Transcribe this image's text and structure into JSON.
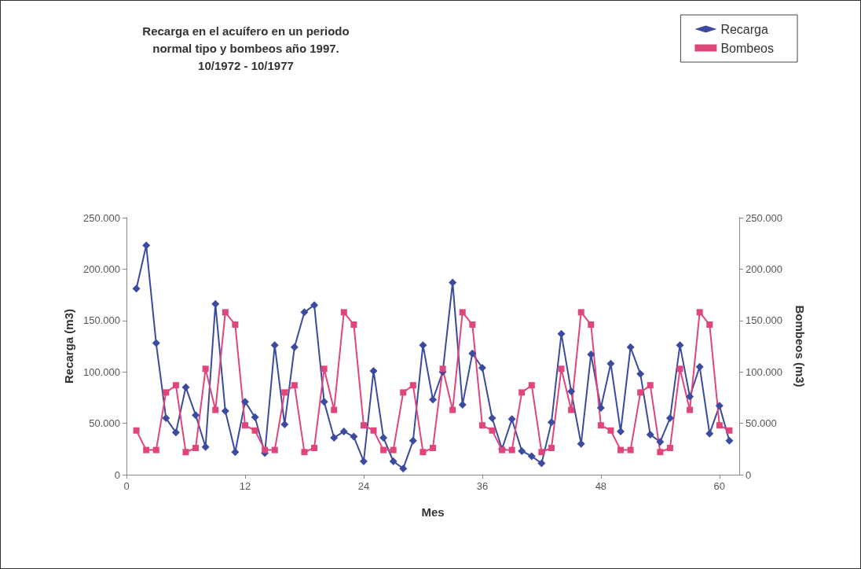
{
  "chart_data": {
    "type": "line",
    "title": "Recarga en el acuífero en un periodo\nnormal tipo y bombeos año 1997.\n10/1972 - 10/1977",
    "xlabel": "Mes",
    "ylabel": "Recarga (m3)",
    "y2label": "Bombeos (m3)",
    "x": [
      1,
      2,
      3,
      4,
      5,
      6,
      7,
      8,
      9,
      10,
      11,
      12,
      13,
      14,
      15,
      16,
      17,
      18,
      19,
      20,
      21,
      22,
      23,
      24,
      25,
      26,
      27,
      28,
      29,
      30,
      31,
      32,
      33,
      34,
      35,
      36,
      37,
      38,
      39,
      40,
      41,
      42,
      43,
      44,
      45,
      46,
      47,
      48,
      49,
      50,
      51,
      52,
      53,
      54,
      55,
      56,
      57,
      58,
      59,
      60,
      61
    ],
    "series": [
      {
        "name": "Recarga",
        "color": "#3b4ba0",
        "marker": "diamond",
        "values": [
          181000,
          223000,
          128000,
          55000,
          41000,
          85000,
          58000,
          27000,
          166000,
          62000,
          22000,
          71000,
          56000,
          21000,
          126000,
          49000,
          124000,
          158000,
          165000,
          71000,
          36000,
          42000,
          37000,
          13000,
          101000,
          36000,
          13000,
          6000,
          33000,
          126000,
          73000,
          100000,
          187000,
          68000,
          118000,
          104000,
          55000,
          25000,
          54000,
          23000,
          18000,
          11000,
          51000,
          137000,
          81000,
          30000,
          117000,
          65000,
          108000,
          42000,
          124000,
          98000,
          39000,
          32000,
          55000,
          126000,
          76000,
          105000,
          40000,
          67000,
          33000
        ]
      },
      {
        "name": "Bombeos",
        "color": "#e0457b",
        "marker": "square",
        "axis": "y2",
        "values": [
          43000,
          24000,
          24000,
          80000,
          87000,
          22000,
          26000,
          103000,
          63000,
          158000,
          146000,
          48000,
          43000,
          24000,
          24000,
          80000,
          87000,
          22000,
          26000,
          103000,
          63000,
          158000,
          146000,
          48000,
          43000,
          24000,
          24000,
          80000,
          87000,
          22000,
          26000,
          103000,
          63000,
          158000,
          146000,
          48000,
          43000,
          24000,
          24000,
          80000,
          87000,
          22000,
          26000,
          103000,
          63000,
          158000,
          146000,
          48000,
          43000,
          24000,
          24000,
          80000,
          87000,
          22000,
          26000,
          103000,
          63000,
          158000,
          146000,
          48000,
          43000
        ]
      }
    ],
    "xlim": [
      0,
      62
    ],
    "xticks": [
      0,
      12,
      24,
      36,
      48,
      60
    ],
    "ylim": [
      0,
      250000
    ],
    "yticks": [
      0,
      {
        "value": 50000,
        "label": "50.000"
      },
      {
        "value": 100000,
        "label": "100.000"
      },
      {
        "value": 150000,
        "label": "150.000"
      },
      {
        "value": 200000,
        "label": "200.000"
      },
      {
        "value": 250000,
        "label": "250.000"
      }
    ],
    "y2lim": [
      0,
      250000
    ],
    "y2ticks": [
      0,
      {
        "value": 50000,
        "label": "50.000"
      },
      {
        "value": 100000,
        "label": "100.000"
      },
      {
        "value": 150000,
        "label": "150.000"
      },
      {
        "value": 200000,
        "label": "200.000"
      },
      {
        "value": 250000,
        "label": "250.000"
      }
    ],
    "grid": false,
    "legend": "top right"
  }
}
